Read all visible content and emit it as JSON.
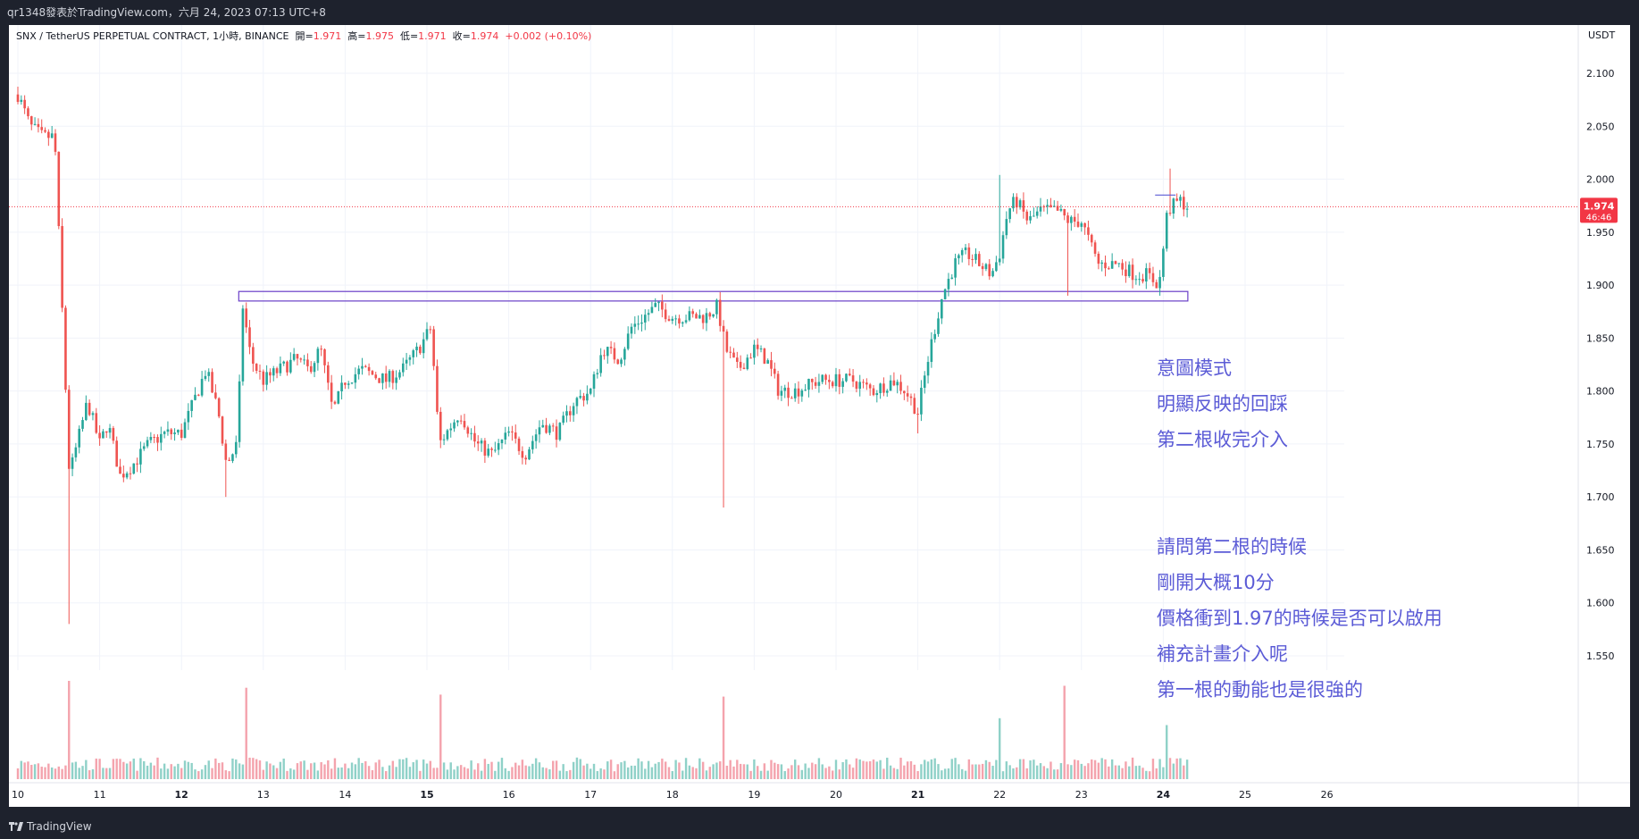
{
  "header": {
    "caption": "qr1348發表於TradingView.com，六月 24, 2023 07:13 UTC+8"
  },
  "footer": {
    "brand": "TradingView"
  },
  "legend": {
    "symbol": "SNX / TetherUS PERPETUAL CONTRACT, 1小時, BINANCE",
    "open_label": "開=",
    "open": "1.971",
    "high_label": "高=",
    "high": "1.975",
    "low_label": "低=",
    "low": "1.971",
    "close_label": "收=",
    "close": "1.974",
    "change": "+0.002 (+0.10%)"
  },
  "price_axis": {
    "unit": "USDT",
    "last_price": "1.974",
    "countdown": "46:46"
  },
  "annotations": {
    "box_note": [
      "意圖模式",
      "明顯反映的回踩",
      "第二根收完介入"
    ],
    "question": [
      "請問第二根的時候",
      "剛開大概10分",
      "價格衝到1.97的時候是否可以啟用",
      "補充計畫介入呢",
      "第一根的動能也是很強的"
    ]
  },
  "colors": {
    "up": "#26a69a",
    "down": "#ef5350",
    "volume_up": "#8fd1c8",
    "volume_down": "#f4a3ad",
    "annotation": "#5b5bd6",
    "zone": "#6a3fc8",
    "price_line": "#f23645"
  },
  "chart_data": {
    "type": "candlestick",
    "interval": "1h",
    "x_labels": [
      "10",
      "11",
      "12",
      "13",
      "14",
      "15",
      "16",
      "17",
      "18",
      "19",
      "20",
      "21",
      "22",
      "23",
      "24",
      "25",
      "26"
    ],
    "y_ticks": [
      2.1,
      2.05,
      2.0,
      1.95,
      1.9,
      1.85,
      1.8,
      1.75,
      1.7,
      1.65,
      1.6,
      1.55
    ],
    "y_tick_labels": [
      "2.100",
      "2.050",
      "2.000",
      "1.950",
      "1.900",
      "1.850",
      "1.800",
      "1.750",
      "1.700",
      "1.650",
      "1.600",
      "1.550"
    ],
    "ylim": [
      1.525,
      2.12
    ],
    "last_price": 1.974,
    "zone": {
      "top": 1.894,
      "bottom": 1.885,
      "from_day": 12.7,
      "to_day": 24.3
    },
    "waypoints": [
      [
        10.0,
        2.08
      ],
      [
        10.15,
        2.05
      ],
      [
        10.3,
        2.04
      ],
      [
        10.45,
        2.04
      ],
      [
        10.5,
        1.95
      ],
      [
        10.63,
        1.72
      ],
      [
        10.85,
        1.79
      ],
      [
        11.0,
        1.75
      ],
      [
        11.1,
        1.77
      ],
      [
        11.25,
        1.72
      ],
      [
        11.4,
        1.73
      ],
      [
        11.6,
        1.75
      ],
      [
        11.8,
        1.76
      ],
      [
        12.0,
        1.76
      ],
      [
        12.15,
        1.79
      ],
      [
        12.3,
        1.82
      ],
      [
        12.45,
        1.78
      ],
      [
        12.55,
        1.73
      ],
      [
        12.68,
        1.75
      ],
      [
        12.75,
        1.88
      ],
      [
        12.85,
        1.83
      ],
      [
        13.0,
        1.81
      ],
      [
        13.2,
        1.82
      ],
      [
        13.4,
        1.83
      ],
      [
        13.55,
        1.82
      ],
      [
        13.7,
        1.84
      ],
      [
        13.85,
        1.78
      ],
      [
        14.0,
        1.81
      ],
      [
        14.2,
        1.82
      ],
      [
        14.5,
        1.81
      ],
      [
        14.7,
        1.82
      ],
      [
        14.9,
        1.84
      ],
      [
        15.05,
        1.86
      ],
      [
        15.15,
        1.75
      ],
      [
        15.4,
        1.78
      ],
      [
        15.6,
        1.75
      ],
      [
        15.8,
        1.74
      ],
      [
        16.0,
        1.76
      ],
      [
        16.2,
        1.74
      ],
      [
        16.4,
        1.77
      ],
      [
        16.6,
        1.76
      ],
      [
        16.8,
        1.79
      ],
      [
        17.0,
        1.8
      ],
      [
        17.15,
        1.84
      ],
      [
        17.35,
        1.83
      ],
      [
        17.5,
        1.86
      ],
      [
        17.65,
        1.87
      ],
      [
        17.8,
        1.88
      ],
      [
        18.0,
        1.87
      ],
      [
        18.2,
        1.87
      ],
      [
        18.4,
        1.87
      ],
      [
        18.55,
        1.88
      ],
      [
        18.65,
        1.84
      ],
      [
        18.8,
        1.82
      ],
      [
        19.0,
        1.84
      ],
      [
        19.15,
        1.83
      ],
      [
        19.3,
        1.8
      ],
      [
        19.5,
        1.8
      ],
      [
        19.8,
        1.81
      ],
      [
        20.0,
        1.81
      ],
      [
        20.2,
        1.81
      ],
      [
        20.45,
        1.8
      ],
      [
        20.7,
        1.81
      ],
      [
        20.85,
        1.8
      ],
      [
        21.0,
        1.78
      ],
      [
        21.15,
        1.84
      ],
      [
        21.3,
        1.89
      ],
      [
        21.45,
        1.92
      ],
      [
        21.6,
        1.93
      ],
      [
        21.75,
        1.92
      ],
      [
        21.9,
        1.91
      ],
      [
        22.0,
        1.93
      ],
      [
        22.1,
        1.97
      ],
      [
        22.2,
        1.98
      ],
      [
        22.35,
        1.96
      ],
      [
        22.5,
        1.97
      ],
      [
        22.7,
        1.97
      ],
      [
        22.85,
        1.96
      ],
      [
        23.0,
        1.96
      ],
      [
        23.2,
        1.92
      ],
      [
        23.45,
        1.92
      ],
      [
        23.65,
        1.91
      ],
      [
        23.8,
        1.91
      ],
      [
        23.95,
        1.9
      ],
      [
        24.05,
        1.97
      ],
      [
        24.2,
        1.98
      ],
      [
        24.3,
        1.974
      ]
    ],
    "wick_extremes": [
      {
        "day": 10.62,
        "low": 1.58
      },
      {
        "day": 12.55,
        "low": 1.7
      },
      {
        "day": 18.62,
        "low": 1.69
      },
      {
        "day": 21.0,
        "low": 1.76
      },
      {
        "day": 22.0,
        "high": 2.004
      },
      {
        "day": 22.85,
        "low": 1.89
      },
      {
        "day": 23.95,
        "low": 1.89
      },
      {
        "day": 24.1,
        "high": 2.01
      }
    ],
    "volume_spikes": [
      {
        "day": 10.62,
        "value": 1.0
      },
      {
        "day": 12.8,
        "value": 0.93
      },
      {
        "day": 15.18,
        "value": 0.86
      },
      {
        "day": 18.62,
        "value": 0.84
      },
      {
        "day": 22.0,
        "value": 0.62
      },
      {
        "day": 22.8,
        "value": 0.95
      },
      {
        "day": 24.05,
        "value": 0.55
      }
    ]
  }
}
